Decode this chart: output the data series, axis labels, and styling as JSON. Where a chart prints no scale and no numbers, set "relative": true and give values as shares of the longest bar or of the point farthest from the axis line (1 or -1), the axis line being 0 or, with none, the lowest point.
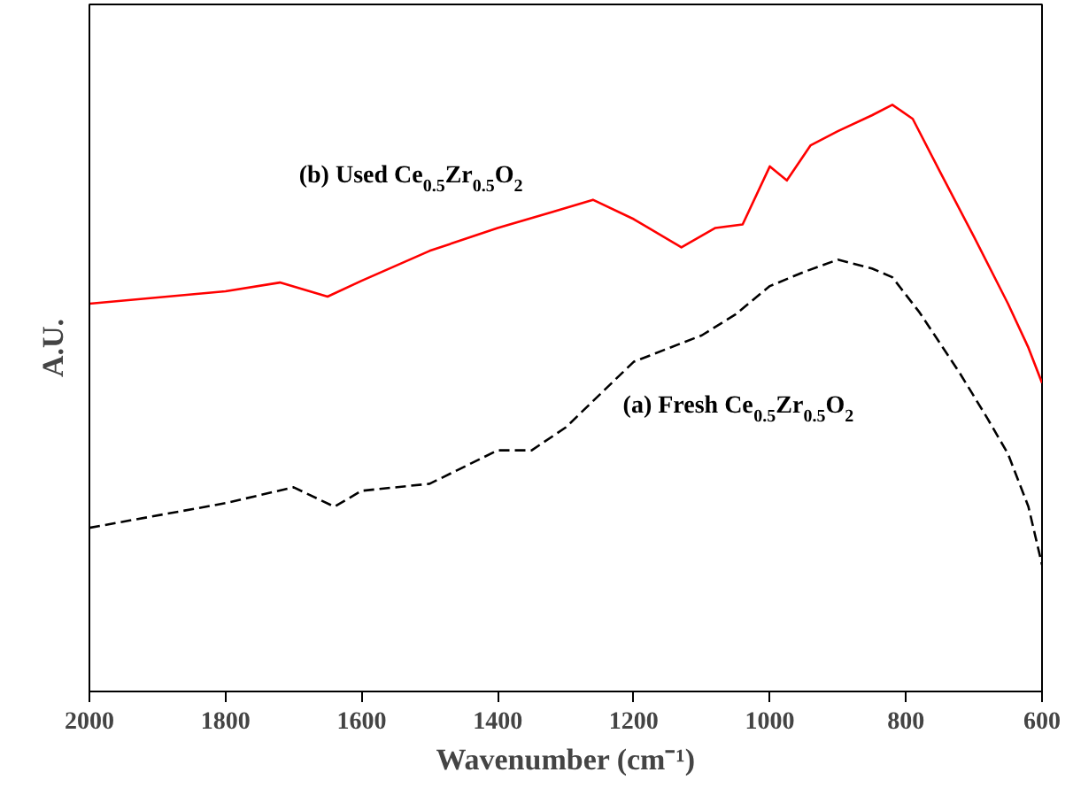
{
  "chart_data": {
    "type": "line",
    "relative": true,
    "xlabel": "Wavenumber (cm⁻¹)",
    "ylabel": "A.U.",
    "xlim": [
      2000,
      600
    ],
    "xticks": [
      2000,
      1800,
      1600,
      1400,
      1200,
      1000,
      800,
      600
    ],
    "grid": false,
    "marker": "none",
    "series": [
      {
        "color": "#ff0000",
        "line_style": "solid",
        "x": [
          2000,
          1800,
          1720,
          1650,
          1600,
          1500,
          1400,
          1320,
          1260,
          1200,
          1130,
          1080,
          1040,
          1000,
          975,
          940,
          900,
          850,
          820,
          790,
          750,
          700,
          650,
          620,
          600
        ],
        "values": [
          0.661,
          0.682,
          0.697,
          0.673,
          0.7,
          0.751,
          0.79,
          0.817,
          0.838,
          0.805,
          0.757,
          0.79,
          0.796,
          0.895,
          0.871,
          0.931,
          0.955,
          0.982,
          1.0,
          0.976,
          0.886,
          0.775,
          0.661,
          0.586,
          0.526
        ]
      },
      {
        "color": "#000000",
        "line_style": "dashed",
        "x": [
          2000,
          1800,
          1700,
          1640,
          1600,
          1500,
          1400,
          1350,
          1300,
          1200,
          1100,
          1050,
          1000,
          950,
          900,
          850,
          820,
          780,
          720,
          680,
          650,
          620,
          600
        ],
        "values": [
          0.279,
          0.321,
          0.348,
          0.315,
          0.342,
          0.354,
          0.411,
          0.411,
          0.45,
          0.562,
          0.607,
          0.643,
          0.691,
          0.715,
          0.736,
          0.721,
          0.706,
          0.646,
          0.541,
          0.465,
          0.405,
          0.315,
          0.216
        ]
      }
    ],
    "annotations": [
      "(b) Used Ce$_{0.5}$Zr$_{0.5}$O$_{2}$",
      "(a) Fresh Ce$_{0.5}$Zr$_{0.5}$O$_{2}$"
    ]
  }
}
